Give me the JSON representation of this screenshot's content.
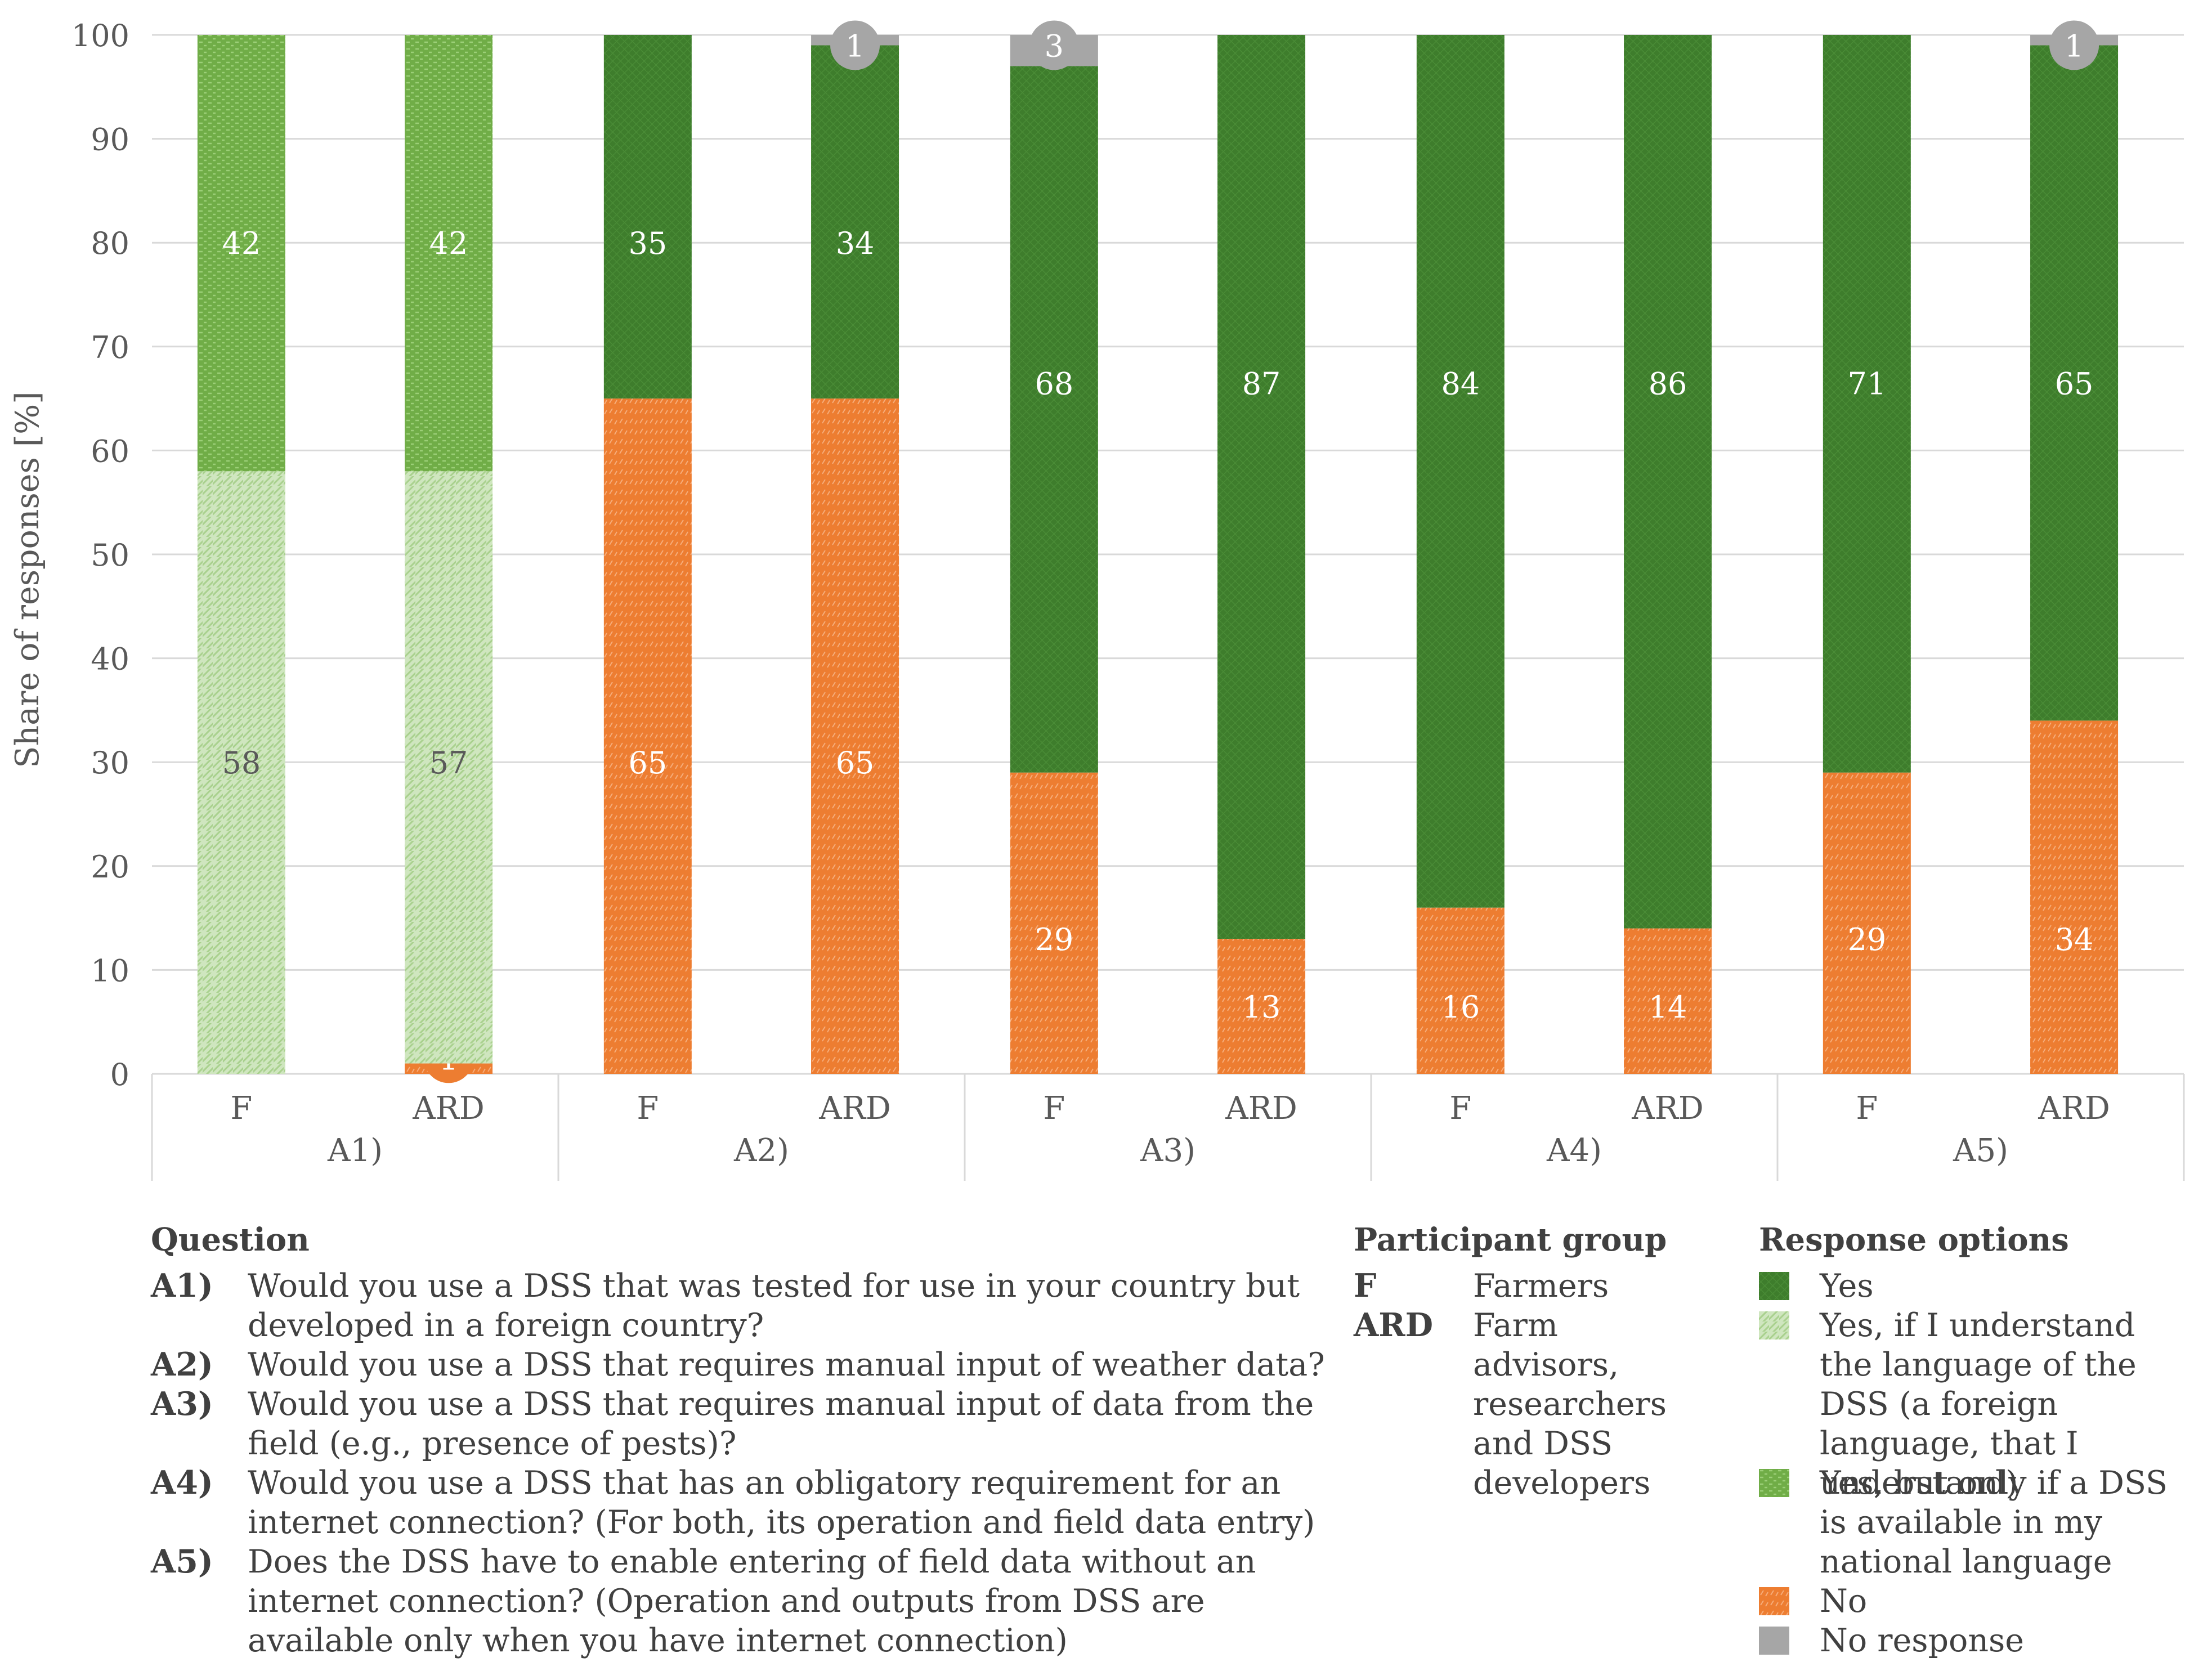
{
  "chart_data": {
    "type": "bar",
    "stacked": true,
    "ylabel": "Share of responses [%]",
    "ylim": [
      0,
      100
    ],
    "yticks": [
      0,
      10,
      20,
      30,
      40,
      50,
      60,
      70,
      80,
      90,
      100
    ],
    "grid": true,
    "groups": [
      {
        "label": "A1)",
        "bars": [
          {
            "label": "F",
            "segments": [
              {
                "key": "yes_understand",
                "value": 58,
                "label": "58"
              },
              {
                "key": "yes_national",
                "value": 42,
                "label": "42"
              }
            ]
          },
          {
            "label": "ARD",
            "segments": [
              {
                "key": "no",
                "value": 1,
                "label": "1",
                "circle": true
              },
              {
                "key": "yes_understand",
                "value": 57,
                "label": "57"
              },
              {
                "key": "yes_national",
                "value": 42,
                "label": "42"
              }
            ]
          }
        ]
      },
      {
        "label": "A2)",
        "bars": [
          {
            "label": "F",
            "segments": [
              {
                "key": "no",
                "value": 65,
                "label": "65"
              },
              {
                "key": "yes",
                "value": 35,
                "label": "35"
              }
            ]
          },
          {
            "label": "ARD",
            "segments": [
              {
                "key": "no",
                "value": 65,
                "label": "65"
              },
              {
                "key": "yes",
                "value": 34,
                "label": "34"
              },
              {
                "key": "no_response",
                "value": 1,
                "label": "1",
                "circle": true
              }
            ]
          }
        ]
      },
      {
        "label": "A3)",
        "bars": [
          {
            "label": "F",
            "segments": [
              {
                "key": "no",
                "value": 29,
                "label": "29"
              },
              {
                "key": "yes",
                "value": 68,
                "label": "68"
              },
              {
                "key": "no_response",
                "value": 3,
                "label": "3",
                "circle": true
              }
            ]
          },
          {
            "label": "ARD",
            "segments": [
              {
                "key": "no",
                "value": 13,
                "label": "13"
              },
              {
                "key": "yes",
                "value": 87,
                "label": "87"
              }
            ]
          }
        ]
      },
      {
        "label": "A4)",
        "bars": [
          {
            "label": "F",
            "segments": [
              {
                "key": "no",
                "value": 16,
                "label": "16"
              },
              {
                "key": "yes",
                "value": 84,
                "label": "84"
              }
            ]
          },
          {
            "label": "ARD",
            "segments": [
              {
                "key": "no",
                "value": 14,
                "label": "14"
              },
              {
                "key": "yes",
                "value": 86,
                "label": "86"
              }
            ]
          }
        ]
      },
      {
        "label": "A5)",
        "bars": [
          {
            "label": "F",
            "segments": [
              {
                "key": "no",
                "value": 29,
                "label": "29"
              },
              {
                "key": "yes",
                "value": 71,
                "label": "71"
              }
            ]
          },
          {
            "label": "ARD",
            "segments": [
              {
                "key": "no",
                "value": 34,
                "label": "34"
              },
              {
                "key": "yes",
                "value": 65,
                "label": "65"
              },
              {
                "key": "no_response",
                "value": 1,
                "label": "1",
                "circle": true
              }
            ]
          }
        ]
      }
    ],
    "colors": {
      "yes": "#3e7d2c",
      "yes_understand": "#c4e0b2",
      "yes_national": "#70ad47",
      "no": "#ed7d31",
      "no_response": "#a6a6a6"
    }
  },
  "legend": {
    "question_title": "Question",
    "questions": [
      {
        "code": "A1)",
        "text": "Would you use a DSS that was tested for use in your country but developed in a foreign country?"
      },
      {
        "code": "A2)",
        "text": "Would you use a DSS that requires manual input of weather data?"
      },
      {
        "code": "A3)",
        "text": "Would you use a DSS that requires manual input of data from the field (e.g., presence of pests)?"
      },
      {
        "code": "A4)",
        "text": "Would you use a DSS that has an obligatory requirement for an internet connection? (For both, its operation and field data entry)"
      },
      {
        "code": "A5)",
        "text": "Does the DSS have to enable entering of field data without an internet connection? (Operation and outputs from DSS are available only when you have internet connection)"
      }
    ],
    "participant_title": "Participant group",
    "participants": [
      {
        "code": "F",
        "text": "Farmers"
      },
      {
        "code": "ARD",
        "text": "Farm advisors, researchers and DSS developers"
      }
    ],
    "response_title": "Response options",
    "responses": [
      {
        "key": "yes",
        "text": "Yes"
      },
      {
        "key": "yes_understand",
        "text": "Yes, if I understand the language of the DSS (a foreign language, that I understand)"
      },
      {
        "key": "yes_national",
        "text": "Yes, but only if a DSS is available in my national language"
      },
      {
        "key": "no",
        "text": "No"
      },
      {
        "key": "no_response",
        "text": "No response"
      }
    ]
  }
}
